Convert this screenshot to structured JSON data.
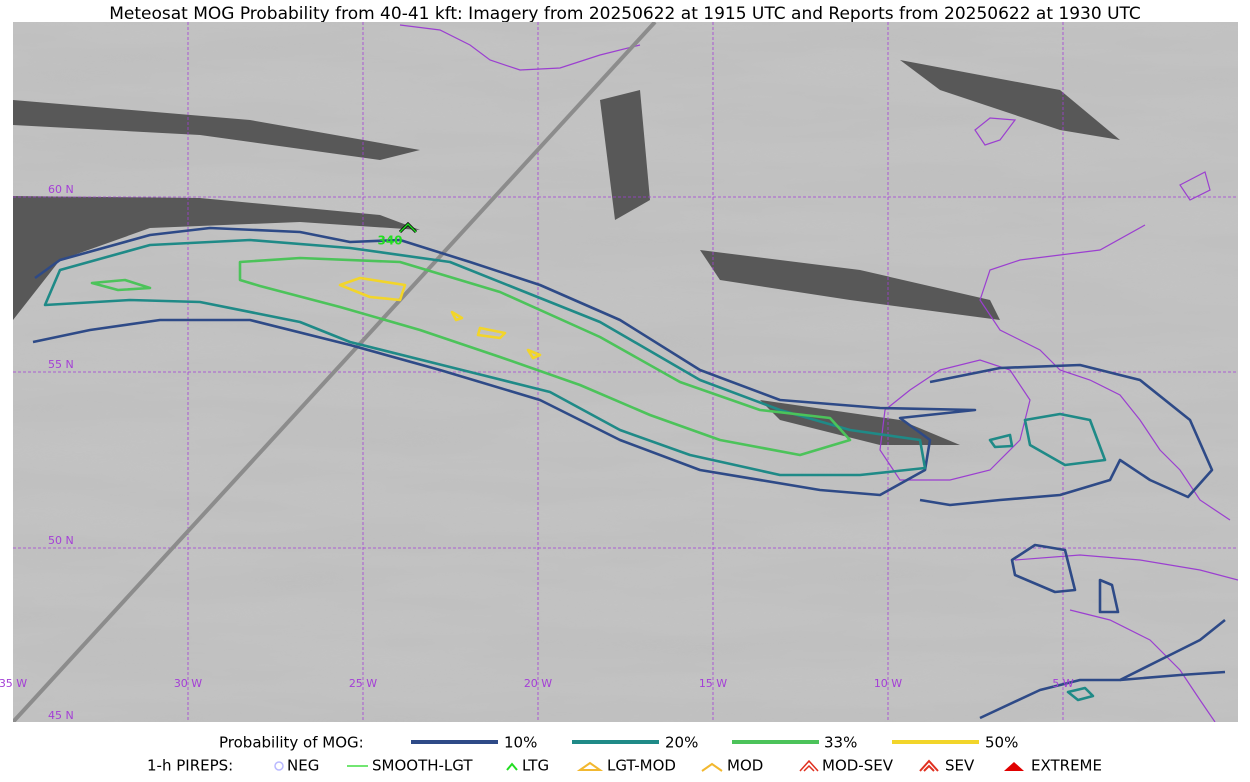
{
  "title": "Meteosat MOG Probability from 40-41 kft: Imagery from 20250622 at 1915 UTC and Reports from 20250622 at 1930 UTC",
  "map": {
    "lat_labels": [
      "60 N",
      "55 N",
      "50 N",
      "45 N"
    ],
    "lon_labels": [
      "35 W",
      "30 W",
      "25 W",
      "20 W",
      "15 W",
      "10 W",
      "5 W"
    ],
    "report_label": "340"
  },
  "legend": {
    "mog_title": "Probability of MOG:",
    "mog_levels": [
      "10%",
      "20%",
      "33%",
      "50%"
    ],
    "pirep_title": "1-h PIREPS:",
    "pireps": [
      "NEG",
      "SMOOTH-LGT",
      "LTG",
      "LGT-MOD",
      "MOD",
      "MOD-SEV",
      "SEV",
      "EXTREME"
    ]
  }
}
